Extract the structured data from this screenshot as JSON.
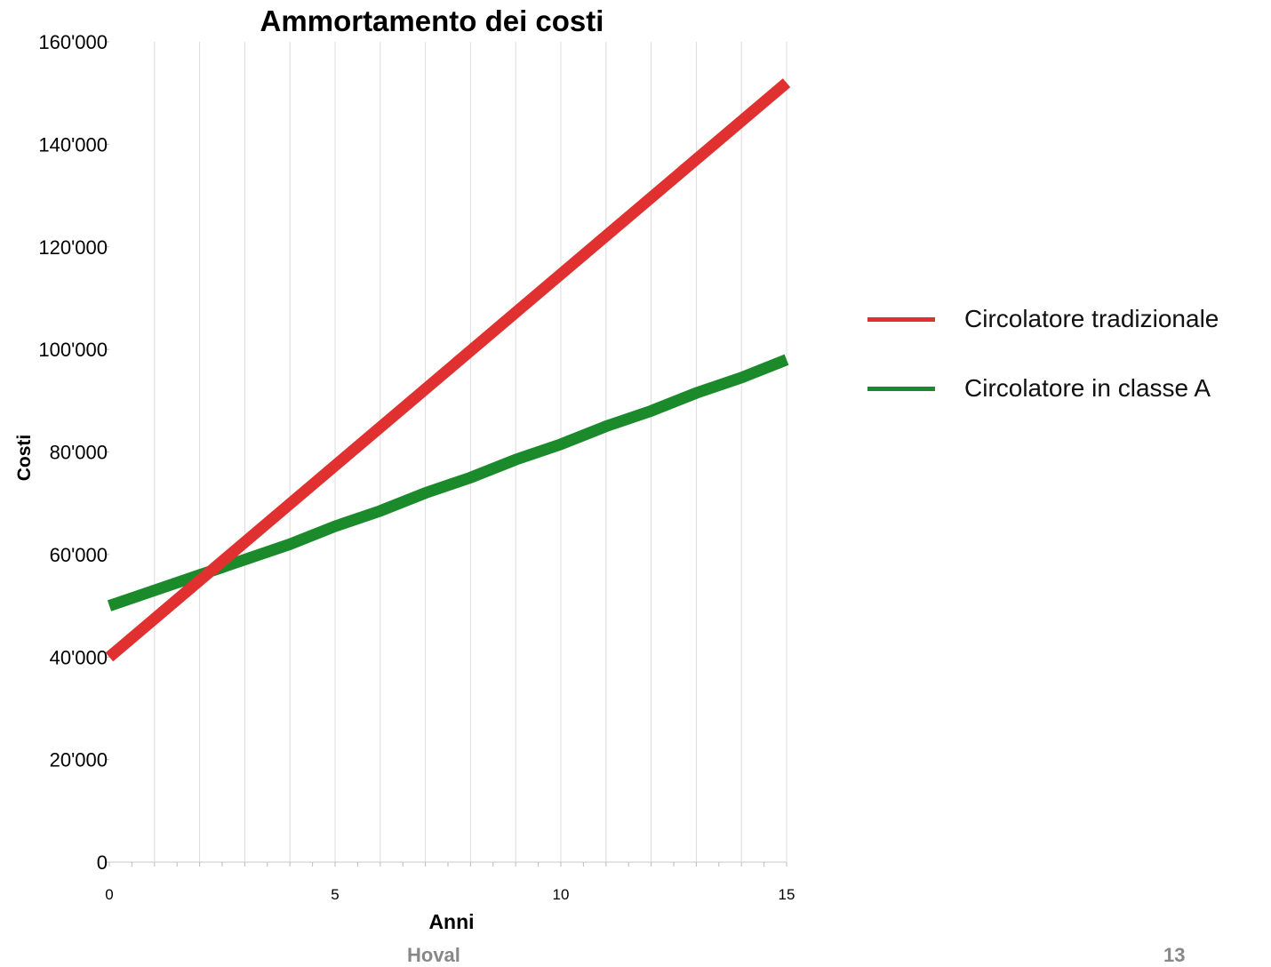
{
  "chart_data": {
    "type": "line",
    "title": "Ammortamento dei costi",
    "xlabel": "Anni",
    "ylabel": "Costi",
    "xlim": [
      0,
      15
    ],
    "ylim": [
      0,
      160000
    ],
    "x_ticks": [
      0,
      5,
      10,
      15
    ],
    "x_tick_labels": [
      "0",
      "5",
      "10",
      "15"
    ],
    "y_ticks": [
      0,
      20000,
      40000,
      60000,
      80000,
      100000,
      120000,
      140000,
      160000
    ],
    "y_tick_labels": [
      "0",
      "20'000",
      "40'000",
      "60'000",
      "80'000",
      "100'000",
      "120'000",
      "140'000",
      "160'000"
    ],
    "grid": "vertical",
    "legend_position": "right",
    "series": [
      {
        "name": "Circolatore tradizionale",
        "color": "#e03030",
        "x": [
          0,
          15
        ],
        "y": [
          40000,
          152000
        ]
      },
      {
        "name": "Circolatore in classe A",
        "color": "#1a8a2a",
        "x": [
          0,
          1,
          2,
          3,
          4,
          5,
          6,
          7,
          8,
          9,
          10,
          11,
          12,
          13,
          14,
          15
        ],
        "y": [
          50000,
          53000,
          56000,
          59000,
          62000,
          65500,
          68500,
          72000,
          75000,
          78500,
          81500,
          85000,
          88000,
          91500,
          94500,
          98000
        ]
      }
    ]
  },
  "footer": {
    "brand": "Hoval",
    "page_number": "13"
  }
}
